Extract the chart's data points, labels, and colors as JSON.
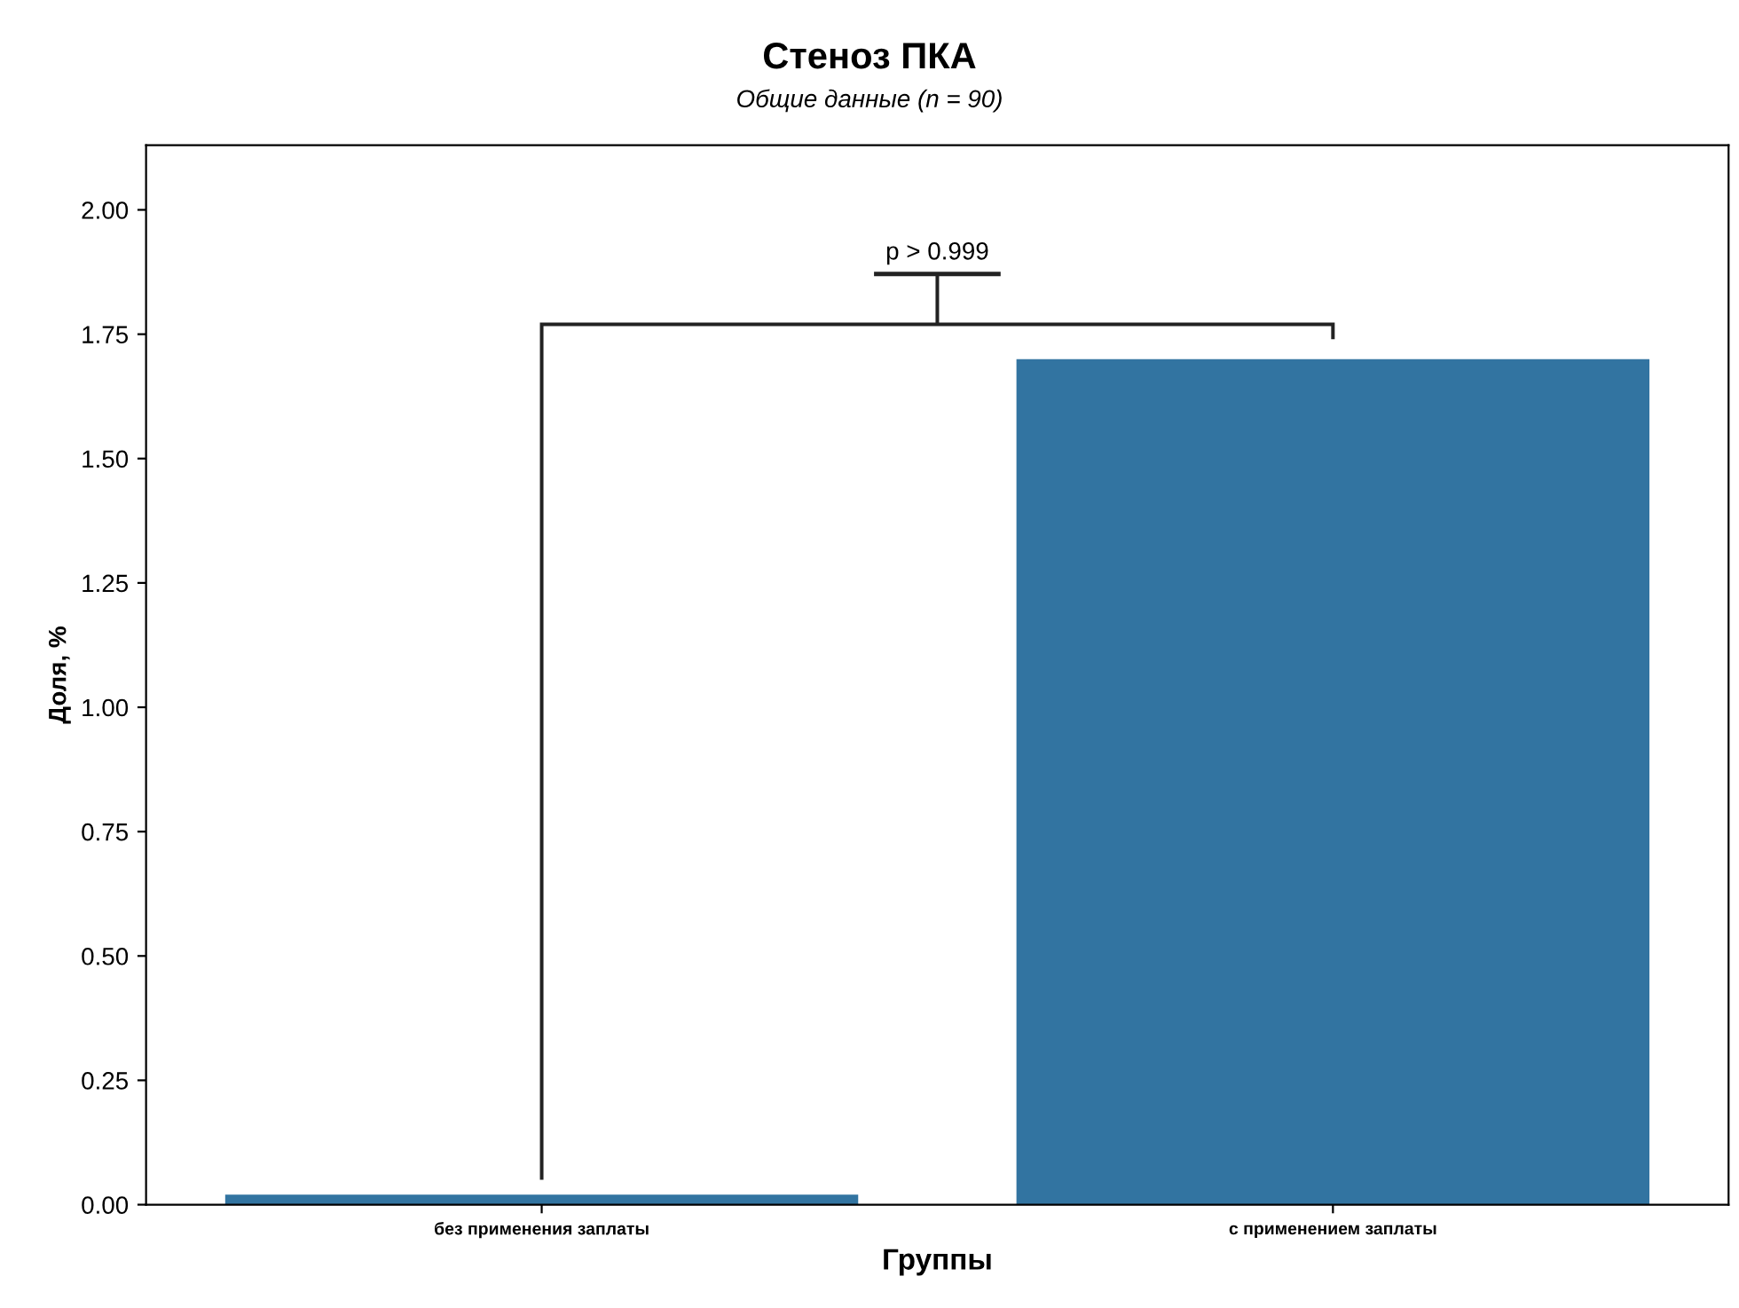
{
  "chart_data": {
    "type": "bar",
    "title": "Стеноз ПКА",
    "subtitle": "Общие данные (n = 90)",
    "xlabel": "Группы",
    "ylabel": "Доля, %",
    "categories": [
      "без применения заплаты",
      "с применением заплаты"
    ],
    "values": [
      0.02,
      1.7
    ],
    "color": "#3274a1",
    "ylim": [
      0,
      2.13
    ],
    "yticks": [
      {
        "value": 0,
        "label": "0.00"
      },
      {
        "value": 0.25,
        "label": "0.25"
      },
      {
        "value": 0.5,
        "label": "0.50"
      },
      {
        "value": 0.75,
        "label": "0.75"
      },
      {
        "value": 1.0,
        "label": "1.00"
      },
      {
        "value": 1.25,
        "label": "1.25"
      },
      {
        "value": 1.5,
        "label": "1.50"
      },
      {
        "value": 1.75,
        "label": "1.75"
      },
      {
        "value": 2.0,
        "label": "2.00"
      }
    ],
    "annotations": [
      "p > 0.999"
    ],
    "grid": false,
    "legend": false
  }
}
